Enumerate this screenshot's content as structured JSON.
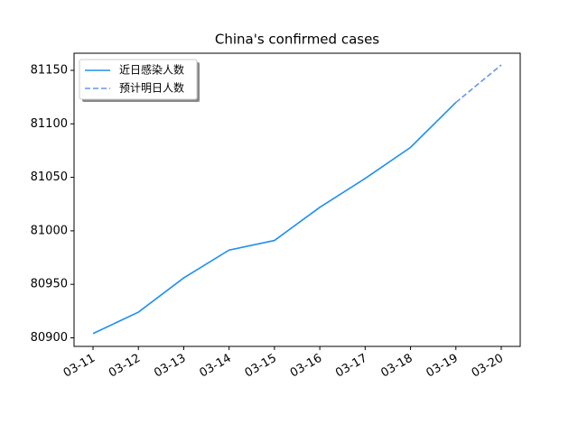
{
  "chart_data": {
    "type": "line",
    "title": "China's confirmed cases",
    "categories": [
      "03-11",
      "03-12",
      "03-13",
      "03-14",
      "03-15",
      "03-16",
      "03-17",
      "03-18",
      "03-19",
      "03-20"
    ],
    "series": [
      {
        "name": "近日感染人数",
        "color": "#1e8ff0",
        "dash": false,
        "values": [
          80904,
          80924,
          80956,
          80982,
          80991,
          81022,
          81049,
          81078,
          81120,
          null
        ]
      },
      {
        "name": "预计明日人数",
        "color": "#6495ed",
        "dash": true,
        "values": [
          null,
          null,
          null,
          null,
          null,
          null,
          null,
          null,
          81120,
          81155
        ]
      }
    ],
    "ylim": [
      80892,
      81166
    ],
    "yticks": [
      80900,
      80950,
      81000,
      81050,
      81100,
      81150
    ],
    "grid": false,
    "legend": "upper left"
  }
}
